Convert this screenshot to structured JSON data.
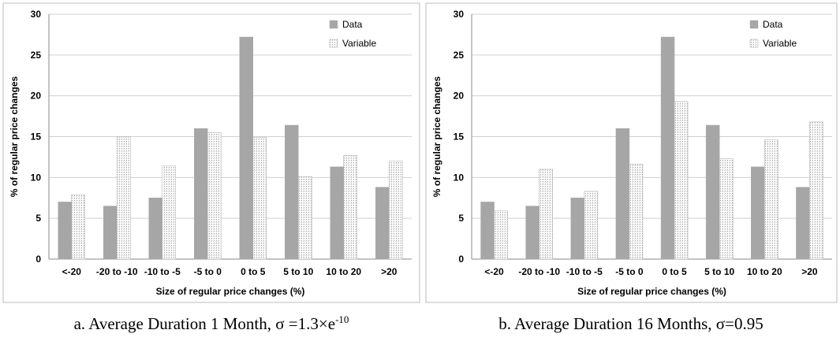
{
  "chart_data": [
    {
      "type": "bar",
      "x_label": "Size of regular price changes (%)",
      "y_label": "% of regular price changes",
      "categories": [
        "<-20",
        "-20 to -10",
        "-10 to -5",
        "-5 to 0",
        "0 to 5",
        "5 to 10",
        "10 to 20",
        ">20"
      ],
      "series": [
        {
          "name": "Data",
          "color": "#a6a6a6",
          "values": [
            7.0,
            6.5,
            7.5,
            16.0,
            27.2,
            16.4,
            11.3,
            8.8
          ]
        },
        {
          "name": "Variable",
          "color": "#dcdcdc",
          "values": [
            7.9,
            15.0,
            11.4,
            15.5,
            14.9,
            10.1,
            12.7,
            12.0
          ]
        }
      ],
      "ylim": [
        0,
        30
      ],
      "yticks": [
        0,
        5,
        10,
        15,
        20,
        25,
        30
      ],
      "grid": true,
      "legend": "top-right",
      "caption": {
        "text": "a. Average Duration 1 Month, σ =1.3×e",
        "superscript": "-10"
      }
    },
    {
      "type": "bar",
      "x_label": "Size of regular price changes (%)",
      "y_label": "% of regular price changes",
      "categories": [
        "<-20",
        "-20 to -10",
        "-10 to -5",
        "-5 to 0",
        "0 to 5",
        "5 to 10",
        "10 to 20",
        ">20"
      ],
      "series": [
        {
          "name": "Data",
          "color": "#a6a6a6",
          "values": [
            7.0,
            6.5,
            7.5,
            16.0,
            27.2,
            16.4,
            11.3,
            8.8
          ]
        },
        {
          "name": "Variable",
          "color": "#dcdcdc",
          "values": [
            5.9,
            11.0,
            8.3,
            11.6,
            19.3,
            12.3,
            14.6,
            16.8
          ]
        }
      ],
      "ylim": [
        0,
        30
      ],
      "yticks": [
        0,
        5,
        10,
        15,
        20,
        25,
        30
      ],
      "grid": true,
      "legend": "top-right",
      "caption": {
        "text": "b. Average Duration 16 Months, σ=0.95"
      }
    }
  ]
}
